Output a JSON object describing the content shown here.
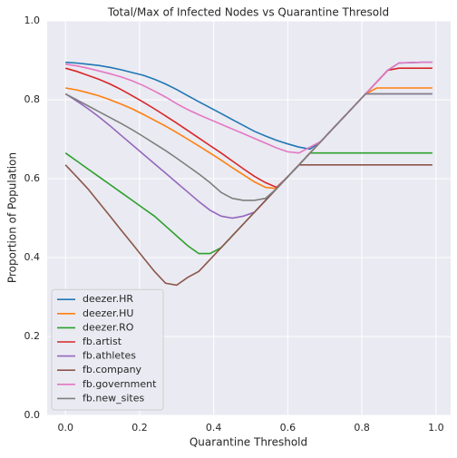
{
  "chart_data": {
    "type": "line",
    "title": "Total/Max of Infected Nodes vs Quarantine Thresold",
    "x_label": "Quarantine Threshold",
    "y_label": "Proportion of Population",
    "x": [
      0,
      0.03,
      0.06,
      0.09,
      0.12,
      0.15,
      0.18,
      0.21,
      0.24,
      0.27,
      0.3,
      0.33,
      0.36,
      0.39,
      0.42,
      0.45,
      0.48,
      0.51,
      0.54,
      0.57,
      0.6,
      0.63,
      0.66,
      0.69,
      0.72,
      0.75,
      0.78,
      0.81,
      0.84,
      0.87,
      0.9,
      0.93,
      0.96,
      0.99
    ],
    "series": [
      {
        "name": "deezer.HR",
        "color": "#1f77b4",
        "values": [
          0.895,
          0.893,
          0.89,
          0.887,
          0.882,
          0.876,
          0.869,
          0.862,
          0.852,
          0.84,
          0.826,
          0.81,
          0.795,
          0.78,
          0.765,
          0.75,
          0.735,
          0.72,
          0.708,
          0.697,
          0.688,
          0.68,
          0.675,
          0.695,
          0.725,
          0.755,
          0.785,
          0.815,
          0.845,
          0.875,
          0.893,
          0.894,
          0.895,
          0.895
        ]
      },
      {
        "name": "deezer.HU",
        "color": "#ff7f0e",
        "values": [
          0.83,
          0.825,
          0.818,
          0.81,
          0.8,
          0.789,
          0.777,
          0.763,
          0.748,
          0.733,
          0.717,
          0.7,
          0.683,
          0.665,
          0.647,
          0.628,
          0.61,
          0.592,
          0.578,
          0.575,
          0.605,
          0.635,
          0.665,
          0.695,
          0.725,
          0.755,
          0.785,
          0.815,
          0.83,
          0.83,
          0.83,
          0.83,
          0.83,
          0.83
        ]
      },
      {
        "name": "deezer.RO",
        "color": "#2ca02c",
        "values": [
          0.665,
          0.645,
          0.625,
          0.605,
          0.585,
          0.565,
          0.545,
          0.525,
          0.505,
          0.48,
          0.455,
          0.43,
          0.41,
          0.41,
          0.425,
          0.455,
          0.485,
          0.515,
          0.545,
          0.575,
          0.605,
          0.635,
          0.665,
          0.665,
          0.665,
          0.665,
          0.665,
          0.665,
          0.665,
          0.665,
          0.665,
          0.665,
          0.665,
          0.665
        ]
      },
      {
        "name": "fb.artist",
        "color": "#d62728",
        "values": [
          0.88,
          0.872,
          0.862,
          0.852,
          0.84,
          0.826,
          0.81,
          0.794,
          0.777,
          0.759,
          0.741,
          0.722,
          0.703,
          0.684,
          0.665,
          0.645,
          0.625,
          0.606,
          0.59,
          0.578,
          0.605,
          0.635,
          0.665,
          0.695,
          0.725,
          0.755,
          0.785,
          0.815,
          0.845,
          0.875,
          0.88,
          0.88,
          0.88,
          0.88
        ]
      },
      {
        "name": "fb.athletes",
        "color": "#9467bd",
        "values": [
          0.815,
          0.797,
          0.778,
          0.757,
          0.734,
          0.71,
          0.686,
          0.662,
          0.638,
          0.614,
          0.59,
          0.566,
          0.542,
          0.52,
          0.505,
          0.5,
          0.505,
          0.515,
          0.545,
          0.575,
          0.605,
          0.635,
          0.665,
          0.695,
          0.725,
          0.755,
          0.785,
          0.815,
          0.815,
          0.815,
          0.815,
          0.815,
          0.815,
          0.815
        ]
      },
      {
        "name": "fb.company",
        "color": "#8c564b",
        "values": [
          0.635,
          0.605,
          0.575,
          0.54,
          0.505,
          0.47,
          0.435,
          0.4,
          0.365,
          0.335,
          0.33,
          0.35,
          0.365,
          0.395,
          0.425,
          0.455,
          0.485,
          0.515,
          0.545,
          0.575,
          0.605,
          0.635,
          0.635,
          0.635,
          0.635,
          0.635,
          0.635,
          0.635,
          0.635,
          0.635,
          0.635,
          0.635,
          0.635,
          0.635
        ]
      },
      {
        "name": "fb.government",
        "color": "#e377c2",
        "values": [
          0.89,
          0.886,
          0.88,
          0.873,
          0.866,
          0.858,
          0.848,
          0.836,
          0.822,
          0.807,
          0.79,
          0.775,
          0.762,
          0.75,
          0.738,
          0.726,
          0.714,
          0.702,
          0.69,
          0.678,
          0.668,
          0.665,
          0.68,
          0.695,
          0.725,
          0.755,
          0.785,
          0.815,
          0.845,
          0.875,
          0.893,
          0.894,
          0.895,
          0.895
        ]
      },
      {
        "name": "fb.new_sites",
        "color": "#7f7f7f",
        "values": [
          0.815,
          0.8,
          0.785,
          0.77,
          0.755,
          0.74,
          0.724,
          0.707,
          0.689,
          0.671,
          0.652,
          0.632,
          0.612,
          0.59,
          0.565,
          0.55,
          0.545,
          0.545,
          0.55,
          0.575,
          0.605,
          0.635,
          0.665,
          0.695,
          0.725,
          0.755,
          0.785,
          0.815,
          0.815,
          0.815,
          0.815,
          0.815,
          0.815,
          0.815
        ]
      }
    ],
    "xlim": [
      -0.0495,
      1.0395
    ],
    "ylim": [
      0,
      1.0
    ],
    "xticks": [
      {
        "value": 0,
        "label": "0.0"
      },
      0.2,
      0.4,
      0.6,
      0.8,
      {
        "value": 1,
        "label": "1.0"
      }
    ],
    "yticks": [
      {
        "value": 0,
        "label": "0.0"
      },
      0.2,
      0.4,
      0.6,
      0.8,
      {
        "value": 1,
        "label": "1.0"
      }
    ],
    "grid": true,
    "legend": "lower left"
  }
}
